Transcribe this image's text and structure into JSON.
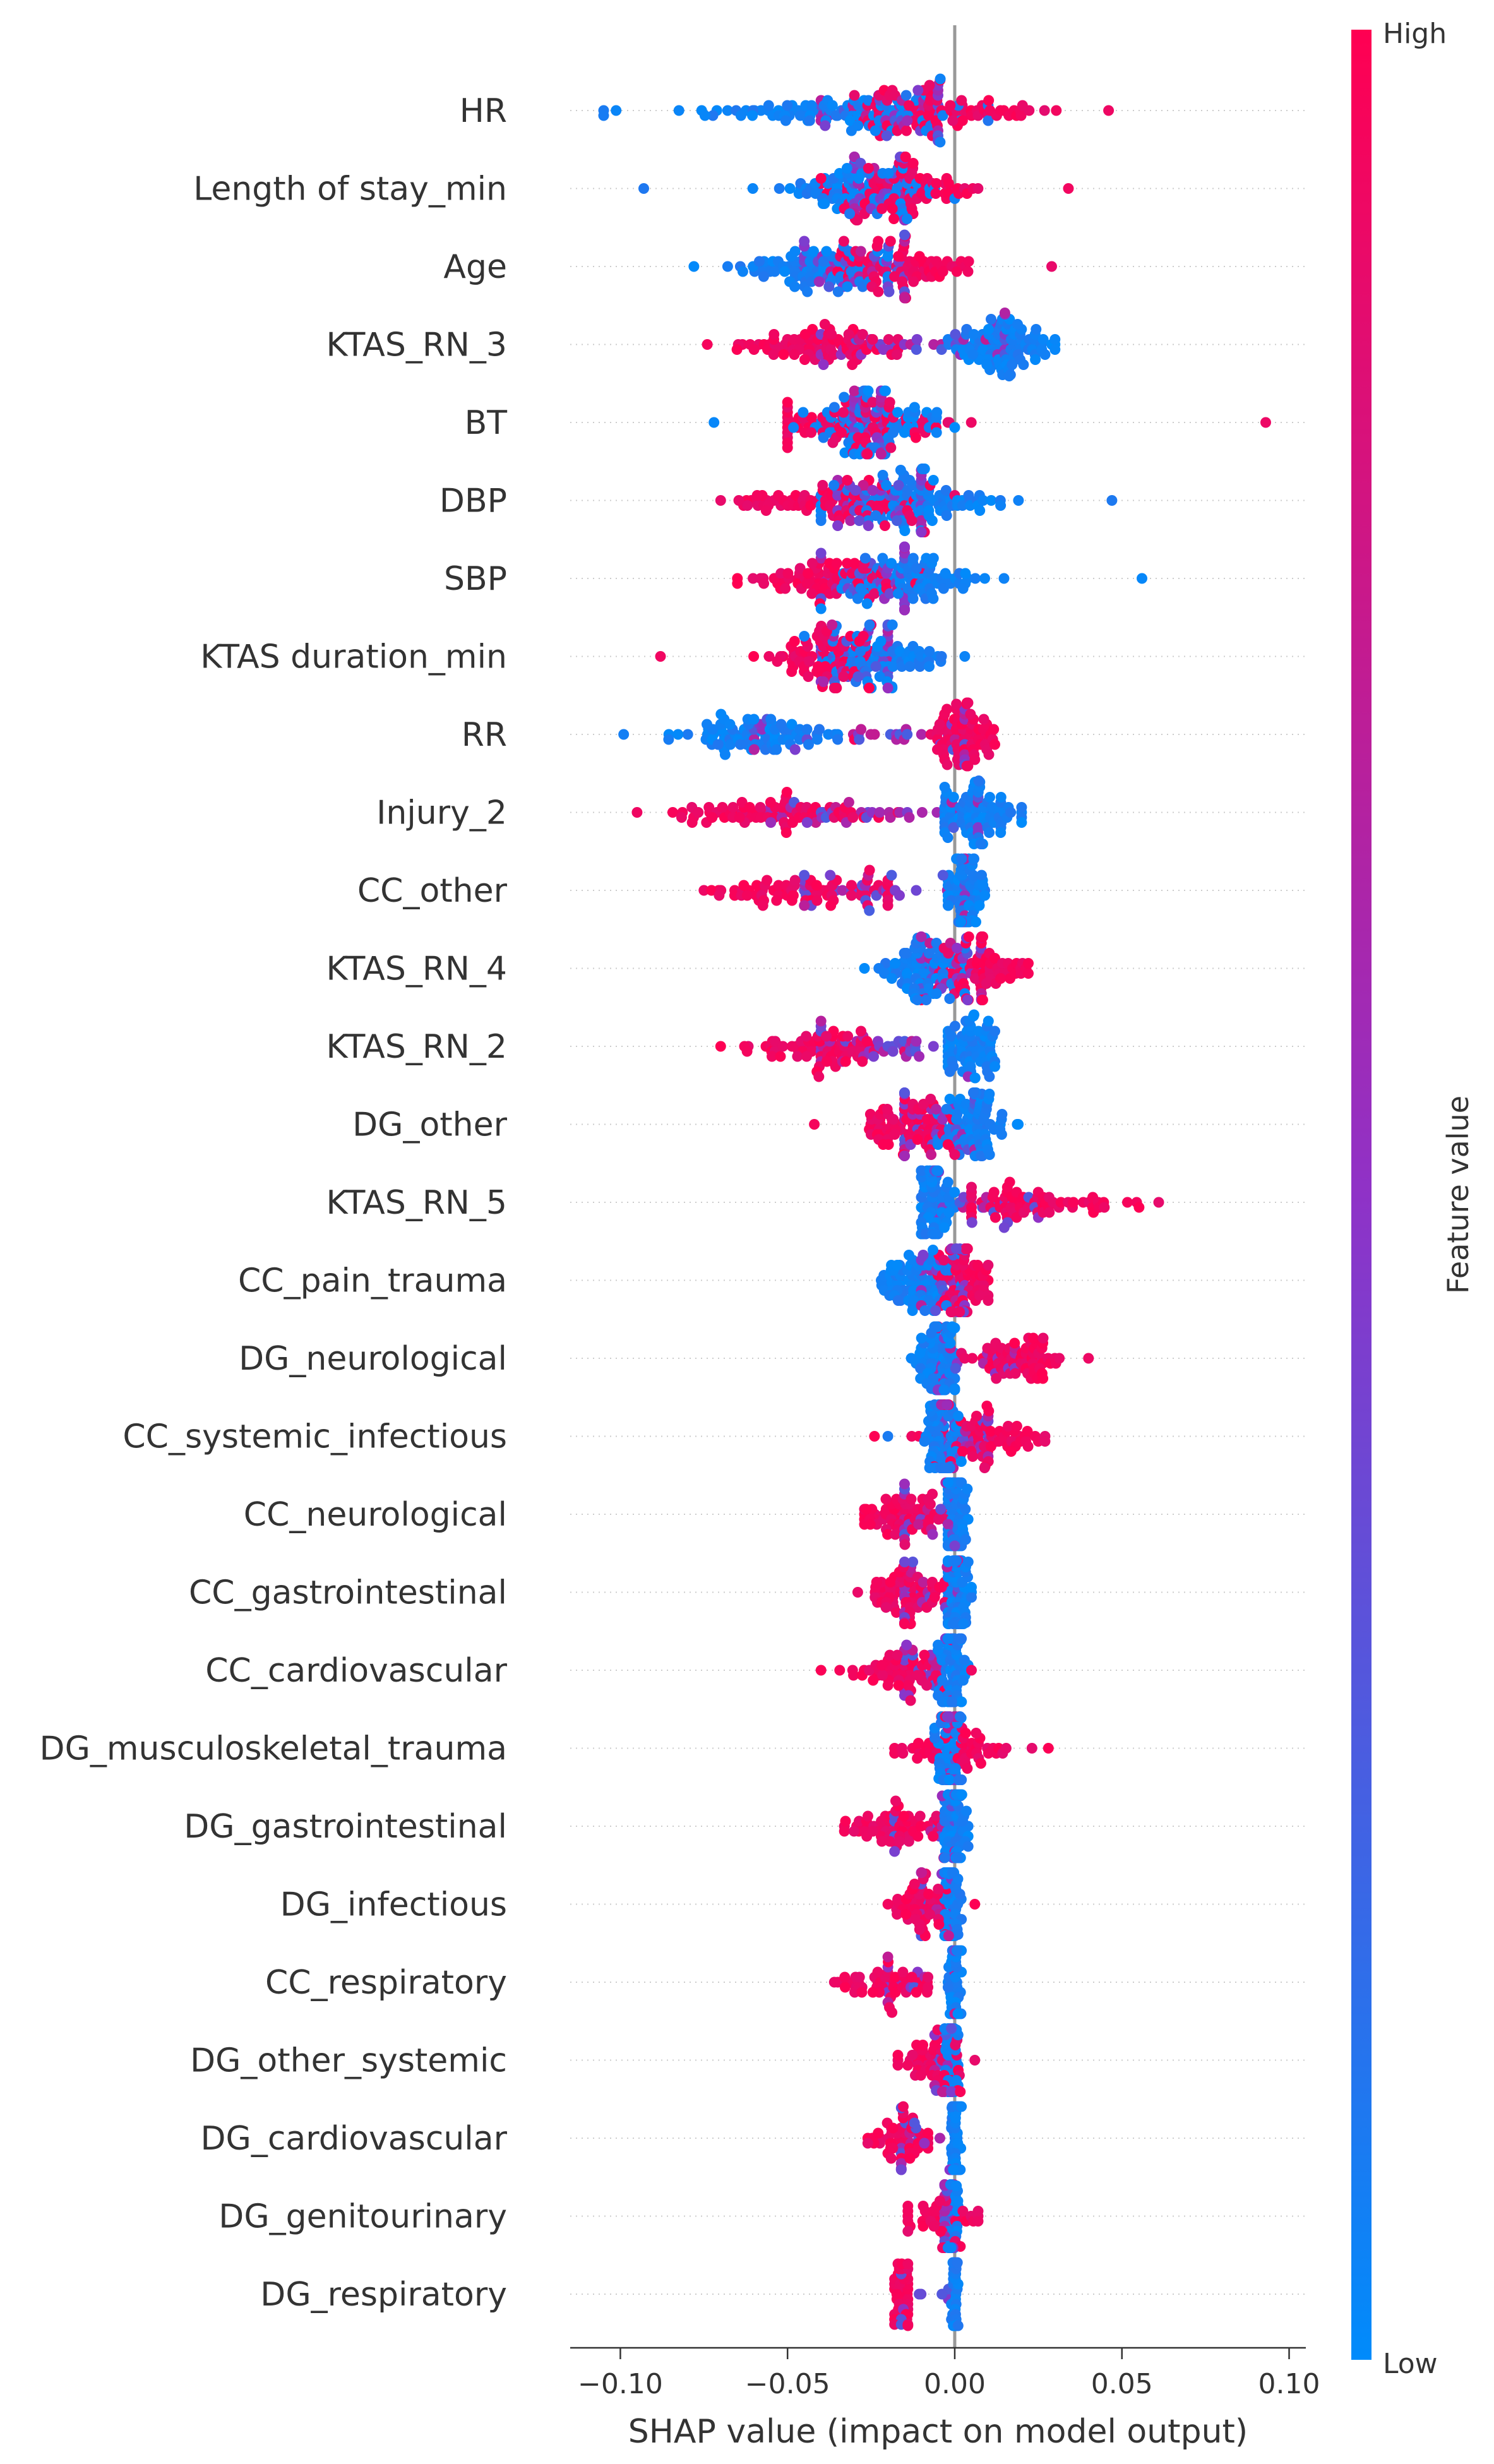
{
  "chart_data": {
    "type": "scatter",
    "subtype": "shap_beeswarm",
    "title": "",
    "xlabel": "SHAP value (impact on model output)",
    "ylabel": "",
    "xlim": [
      -0.115,
      0.105
    ],
    "xticks": [
      {
        "value": -0.1,
        "label": "−0.10"
      },
      {
        "value": -0.05,
        "label": "−0.05"
      },
      {
        "value": 0.0,
        "label": "0.00"
      },
      {
        "value": 0.05,
        "label": "0.05"
      },
      {
        "value": 0.1,
        "label": "0.10"
      }
    ],
    "zero_line": 0,
    "colorbar": {
      "label": "Feature value",
      "high_label": "High",
      "low_label": "Low",
      "high_color": "#ff0052",
      "mid_color": "#8f32c7",
      "low_color": "#008bfb"
    },
    "features": [
      {
        "name": "HR",
        "low": {
          "min": -0.105,
          "max": 0.01,
          "center": -0.04,
          "spread": 0.026
        },
        "high": {
          "min": -0.03,
          "max": 0.046,
          "center": -0.005,
          "spread": 0.015
        },
        "mid_center": -0.018,
        "density": 1.0
      },
      {
        "name": "Length of stay_min",
        "low": {
          "min": -0.093,
          "max": 0.0,
          "center": -0.03,
          "spread": 0.012
        },
        "high": {
          "min": -0.04,
          "max": 0.034,
          "center": -0.015,
          "spread": 0.012
        },
        "mid_center": -0.022,
        "density": 0.9
      },
      {
        "name": "Age",
        "low": {
          "min": -0.078,
          "max": -0.02,
          "center": -0.045,
          "spread": 0.012
        },
        "high": {
          "min": -0.04,
          "max": 0.029,
          "center": -0.015,
          "spread": 0.012
        },
        "mid_center": -0.028,
        "density": 0.9
      },
      {
        "name": "KTAS_RN_3",
        "low": {
          "min": -0.002,
          "max": 0.03,
          "center": 0.015,
          "spread": 0.007
        },
        "high": {
          "min": -0.074,
          "max": -0.017,
          "center": -0.04,
          "spread": 0.01
        },
        "mid_center": -0.01,
        "density": 1.0
      },
      {
        "name": "BT",
        "low": {
          "min": -0.072,
          "max": 0.0,
          "center": -0.025,
          "spread": 0.011
        },
        "high": {
          "min": -0.05,
          "max": 0.093,
          "center": -0.03,
          "spread": 0.015
        },
        "mid_center": -0.022,
        "density": 0.9
      },
      {
        "name": "DBP",
        "low": {
          "min": -0.04,
          "max": 0.047,
          "center": -0.01,
          "spread": 0.014
        },
        "high": {
          "min": -0.07,
          "max": 0.0,
          "center": -0.035,
          "spread": 0.013
        },
        "mid_center": -0.02,
        "density": 1.0
      },
      {
        "name": "SBP",
        "low": {
          "min": -0.04,
          "max": 0.056,
          "center": -0.015,
          "spread": 0.012
        },
        "high": {
          "min": -0.065,
          "max": -0.01,
          "center": -0.04,
          "spread": 0.01
        },
        "mid_center": -0.025,
        "density": 0.9
      },
      {
        "name": "KTAS duration_min",
        "low": {
          "min": -0.045,
          "max": 0.003,
          "center": -0.02,
          "spread": 0.009
        },
        "high": {
          "min": -0.088,
          "max": -0.025,
          "center": -0.04,
          "spread": 0.01
        },
        "mid_center": -0.025,
        "density": 0.85
      },
      {
        "name": "RR",
        "low": {
          "min": -0.099,
          "max": -0.035,
          "center": -0.06,
          "spread": 0.012
        },
        "high": {
          "min": -0.03,
          "max": 0.012,
          "center": 0.003,
          "spread": 0.005
        },
        "mid_center": -0.02,
        "density": 0.9
      },
      {
        "name": "Injury_2",
        "low": {
          "min": -0.003,
          "max": 0.02,
          "center": 0.007,
          "spread": 0.006
        },
        "high": {
          "min": -0.095,
          "max": -0.017,
          "center": -0.055,
          "spread": 0.016
        },
        "mid_center": -0.02,
        "density": 0.9
      },
      {
        "name": "CC_other",
        "low": {
          "min": -0.002,
          "max": 0.009,
          "center": 0.003,
          "spread": 0.003
        },
        "high": {
          "min": -0.075,
          "max": -0.02,
          "center": -0.045,
          "spread": 0.012
        },
        "mid_center": -0.02,
        "density": 0.85
      },
      {
        "name": "KTAS_RN_4",
        "low": {
          "min": -0.027,
          "max": 0.003,
          "center": -0.01,
          "spread": 0.006
        },
        "high": {
          "min": -0.01,
          "max": 0.022,
          "center": 0.008,
          "spread": 0.007
        },
        "mid_center": 0.0,
        "density": 0.85
      },
      {
        "name": "KTAS_RN_2",
        "low": {
          "min": -0.002,
          "max": 0.012,
          "center": 0.004,
          "spread": 0.004
        },
        "high": {
          "min": -0.07,
          "max": -0.015,
          "center": -0.04,
          "spread": 0.01
        },
        "mid_center": -0.02,
        "density": 0.85
      },
      {
        "name": "DG_other",
        "low": {
          "min": -0.005,
          "max": 0.019,
          "center": 0.006,
          "spread": 0.005
        },
        "high": {
          "min": -0.042,
          "max": 0.0,
          "center": -0.015,
          "spread": 0.007
        },
        "mid_center": -0.005,
        "density": 0.9
      },
      {
        "name": "KTAS_RN_5",
        "low": {
          "min": -0.01,
          "max": 0.0,
          "center": -0.006,
          "spread": 0.003
        },
        "high": {
          "min": 0.005,
          "max": 0.061,
          "center": 0.025,
          "spread": 0.013
        },
        "mid_center": 0.0,
        "density": 0.8
      },
      {
        "name": "CC_pain_trauma",
        "low": {
          "min": -0.022,
          "max": 0.002,
          "center": -0.01,
          "spread": 0.005
        },
        "high": {
          "min": -0.005,
          "max": 0.01,
          "center": 0.003,
          "spread": 0.004
        },
        "mid_center": -0.003,
        "density": 0.85
      },
      {
        "name": "DG_neurological",
        "low": {
          "min": -0.013,
          "max": 0.0,
          "center": -0.005,
          "spread": 0.003
        },
        "high": {
          "min": 0.002,
          "max": 0.04,
          "center": 0.018,
          "spread": 0.009
        },
        "mid_center": 0.0,
        "density": 0.8
      },
      {
        "name": "CC_systemic_infectious",
        "low": {
          "min": -0.02,
          "max": 0.002,
          "center": -0.004,
          "spread": 0.003
        },
        "high": {
          "min": -0.024,
          "max": 0.027,
          "center": 0.01,
          "spread": 0.009
        },
        "mid_center": 0.0,
        "density": 0.8
      },
      {
        "name": "CC_neurological",
        "low": {
          "min": -0.002,
          "max": 0.004,
          "center": 0.0,
          "spread": 0.002
        },
        "high": {
          "min": -0.027,
          "max": -0.003,
          "center": -0.015,
          "spread": 0.006
        },
        "mid_center": -0.005,
        "density": 0.75
      },
      {
        "name": "CC_gastrointestinal",
        "low": {
          "min": -0.002,
          "max": 0.005,
          "center": 0.001,
          "spread": 0.002
        },
        "high": {
          "min": -0.029,
          "max": -0.003,
          "center": -0.015,
          "spread": 0.006
        },
        "mid_center": -0.005,
        "density": 0.75
      },
      {
        "name": "CC_cardiovascular",
        "low": {
          "min": -0.005,
          "max": 0.004,
          "center": -0.001,
          "spread": 0.002
        },
        "high": {
          "min": -0.04,
          "max": 0.005,
          "center": -0.015,
          "spread": 0.008
        },
        "mid_center": -0.005,
        "density": 0.7
      },
      {
        "name": "DG_musculoskeletal_trauma",
        "low": {
          "min": -0.006,
          "max": 0.002,
          "center": -0.002,
          "spread": 0.002
        },
        "high": {
          "min": -0.018,
          "max": 0.028,
          "center": 0.0,
          "spread": 0.008
        },
        "mid_center": 0.0,
        "density": 0.7
      },
      {
        "name": "DG_gastrointestinal",
        "low": {
          "min": -0.003,
          "max": 0.004,
          "center": 0.0,
          "spread": 0.002
        },
        "high": {
          "min": -0.033,
          "max": -0.005,
          "center": -0.018,
          "spread": 0.007
        },
        "mid_center": -0.005,
        "density": 0.7
      },
      {
        "name": "DG_infectious",
        "low": {
          "min": -0.003,
          "max": 0.002,
          "center": -0.001,
          "spread": 0.0015
        },
        "high": {
          "min": -0.02,
          "max": 0.006,
          "center": -0.01,
          "spread": 0.005
        },
        "mid_center": -0.003,
        "density": 0.65
      },
      {
        "name": "CC_respiratory",
        "low": {
          "min": -0.002,
          "max": 0.002,
          "center": 0.0,
          "spread": 0.001
        },
        "high": {
          "min": -0.036,
          "max": -0.008,
          "center": -0.02,
          "spread": 0.008
        },
        "mid_center": -0.005,
        "density": 0.6
      },
      {
        "name": "DG_other_systemic",
        "low": {
          "min": -0.003,
          "max": 0.001,
          "center": -0.001,
          "spread": 0.0012
        },
        "high": {
          "min": -0.017,
          "max": 0.006,
          "center": -0.006,
          "spread": 0.006
        },
        "mid_center": -0.002,
        "density": 0.6
      },
      {
        "name": "DG_cardiovascular",
        "low": {
          "min": -0.001,
          "max": 0.002,
          "center": 0.0,
          "spread": 0.0008
        },
        "high": {
          "min": -0.026,
          "max": -0.008,
          "center": -0.016,
          "spread": 0.005
        },
        "mid_center": -0.004,
        "density": 0.55
      },
      {
        "name": "DG_genitourinary",
        "low": {
          "min": -0.002,
          "max": 0.001,
          "center": -0.0005,
          "spread": 0.0008
        },
        "high": {
          "min": -0.014,
          "max": 0.007,
          "center": -0.003,
          "spread": 0.008
        },
        "mid_center": -0.002,
        "density": 0.5
      },
      {
        "name": "DG_respiratory",
        "low": {
          "min": -0.001,
          "max": 0.001,
          "center": 0.0,
          "spread": 0.0006
        },
        "high": {
          "min": -0.018,
          "max": -0.014,
          "center": -0.016,
          "spread": 0.002
        },
        "mid_center": -0.003,
        "density": 0.45
      }
    ]
  }
}
